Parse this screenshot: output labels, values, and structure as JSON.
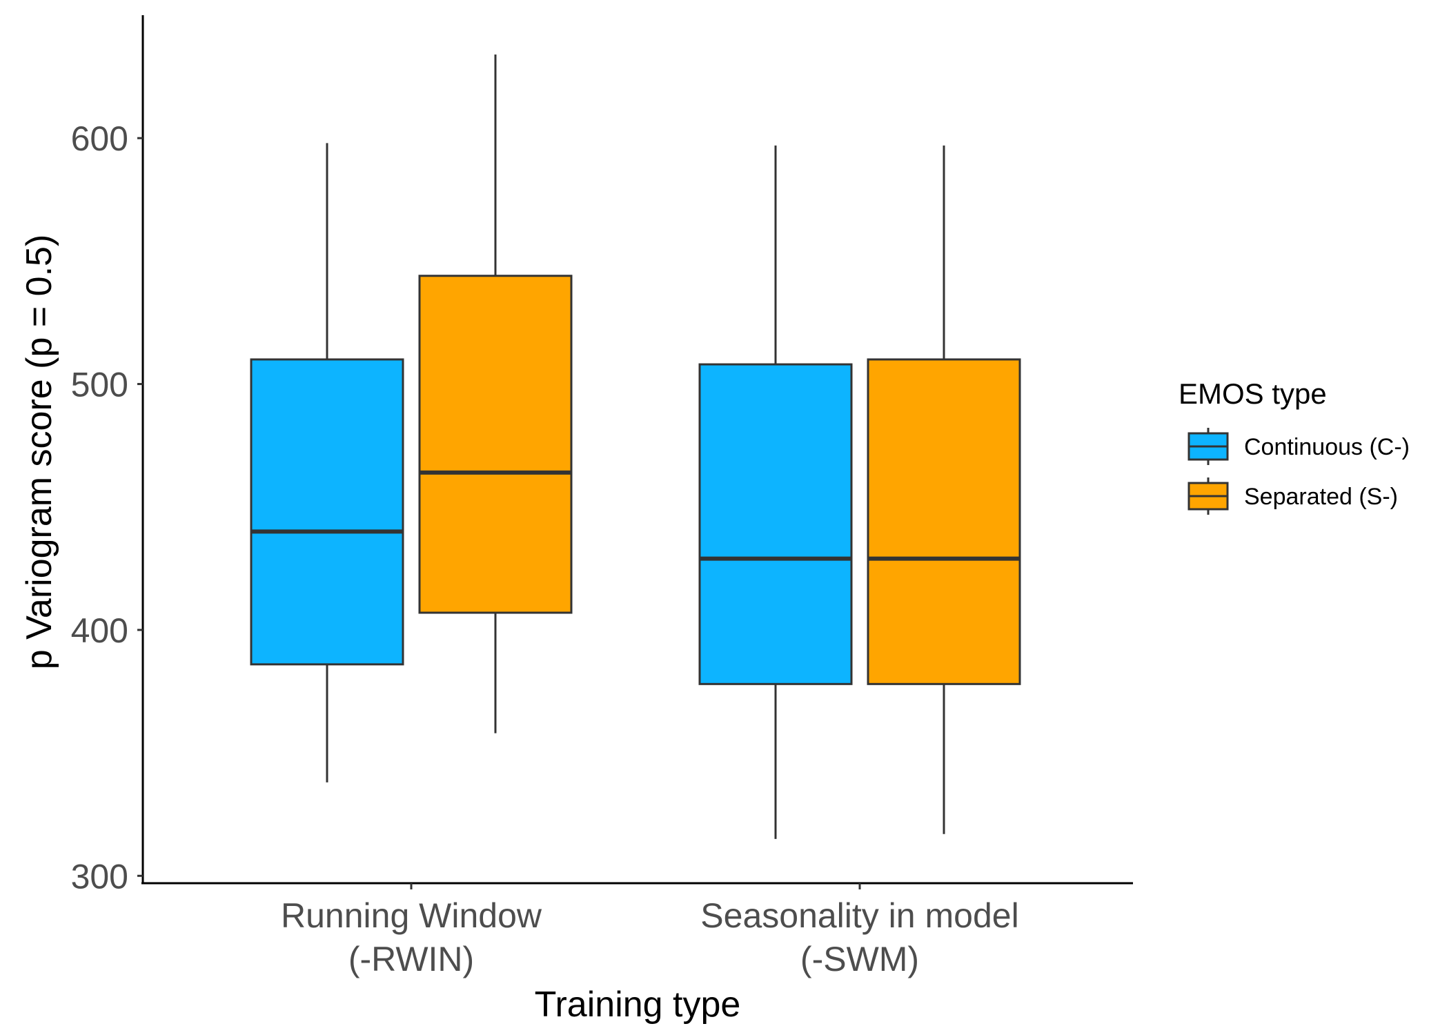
{
  "chart_data": {
    "type": "boxplot",
    "xlabel": "Training type",
    "ylabel": "p Variogram score (p = 0.5)",
    "ylim": [
      297,
      650
    ],
    "yticks": [
      300,
      400,
      500,
      600
    ],
    "grid": false,
    "legend_position": "right",
    "categories": [
      {
        "lines": [
          "Running Window",
          "(-RWIN)"
        ]
      },
      {
        "lines": [
          "Seasonality in model",
          "(-SWM)"
        ]
      }
    ],
    "legend": {
      "title": "EMOS type"
    },
    "series": [
      {
        "name": "Continuous (C-)",
        "color": "#0db4ff",
        "boxes": [
          {
            "min": 338,
            "q1": 386,
            "median": 440,
            "q3": 510,
            "max": 598
          },
          {
            "min": 315,
            "q1": 378,
            "median": 429,
            "q3": 508,
            "max": 597
          }
        ]
      },
      {
        "name": "Separated (S-)",
        "color": "#ffa500",
        "boxes": [
          {
            "min": 358,
            "q1": 407,
            "median": 464,
            "q3": 544,
            "max": 634
          },
          {
            "min": 317,
            "q1": 378,
            "median": 429,
            "q3": 510,
            "max": 597
          }
        ]
      }
    ]
  }
}
